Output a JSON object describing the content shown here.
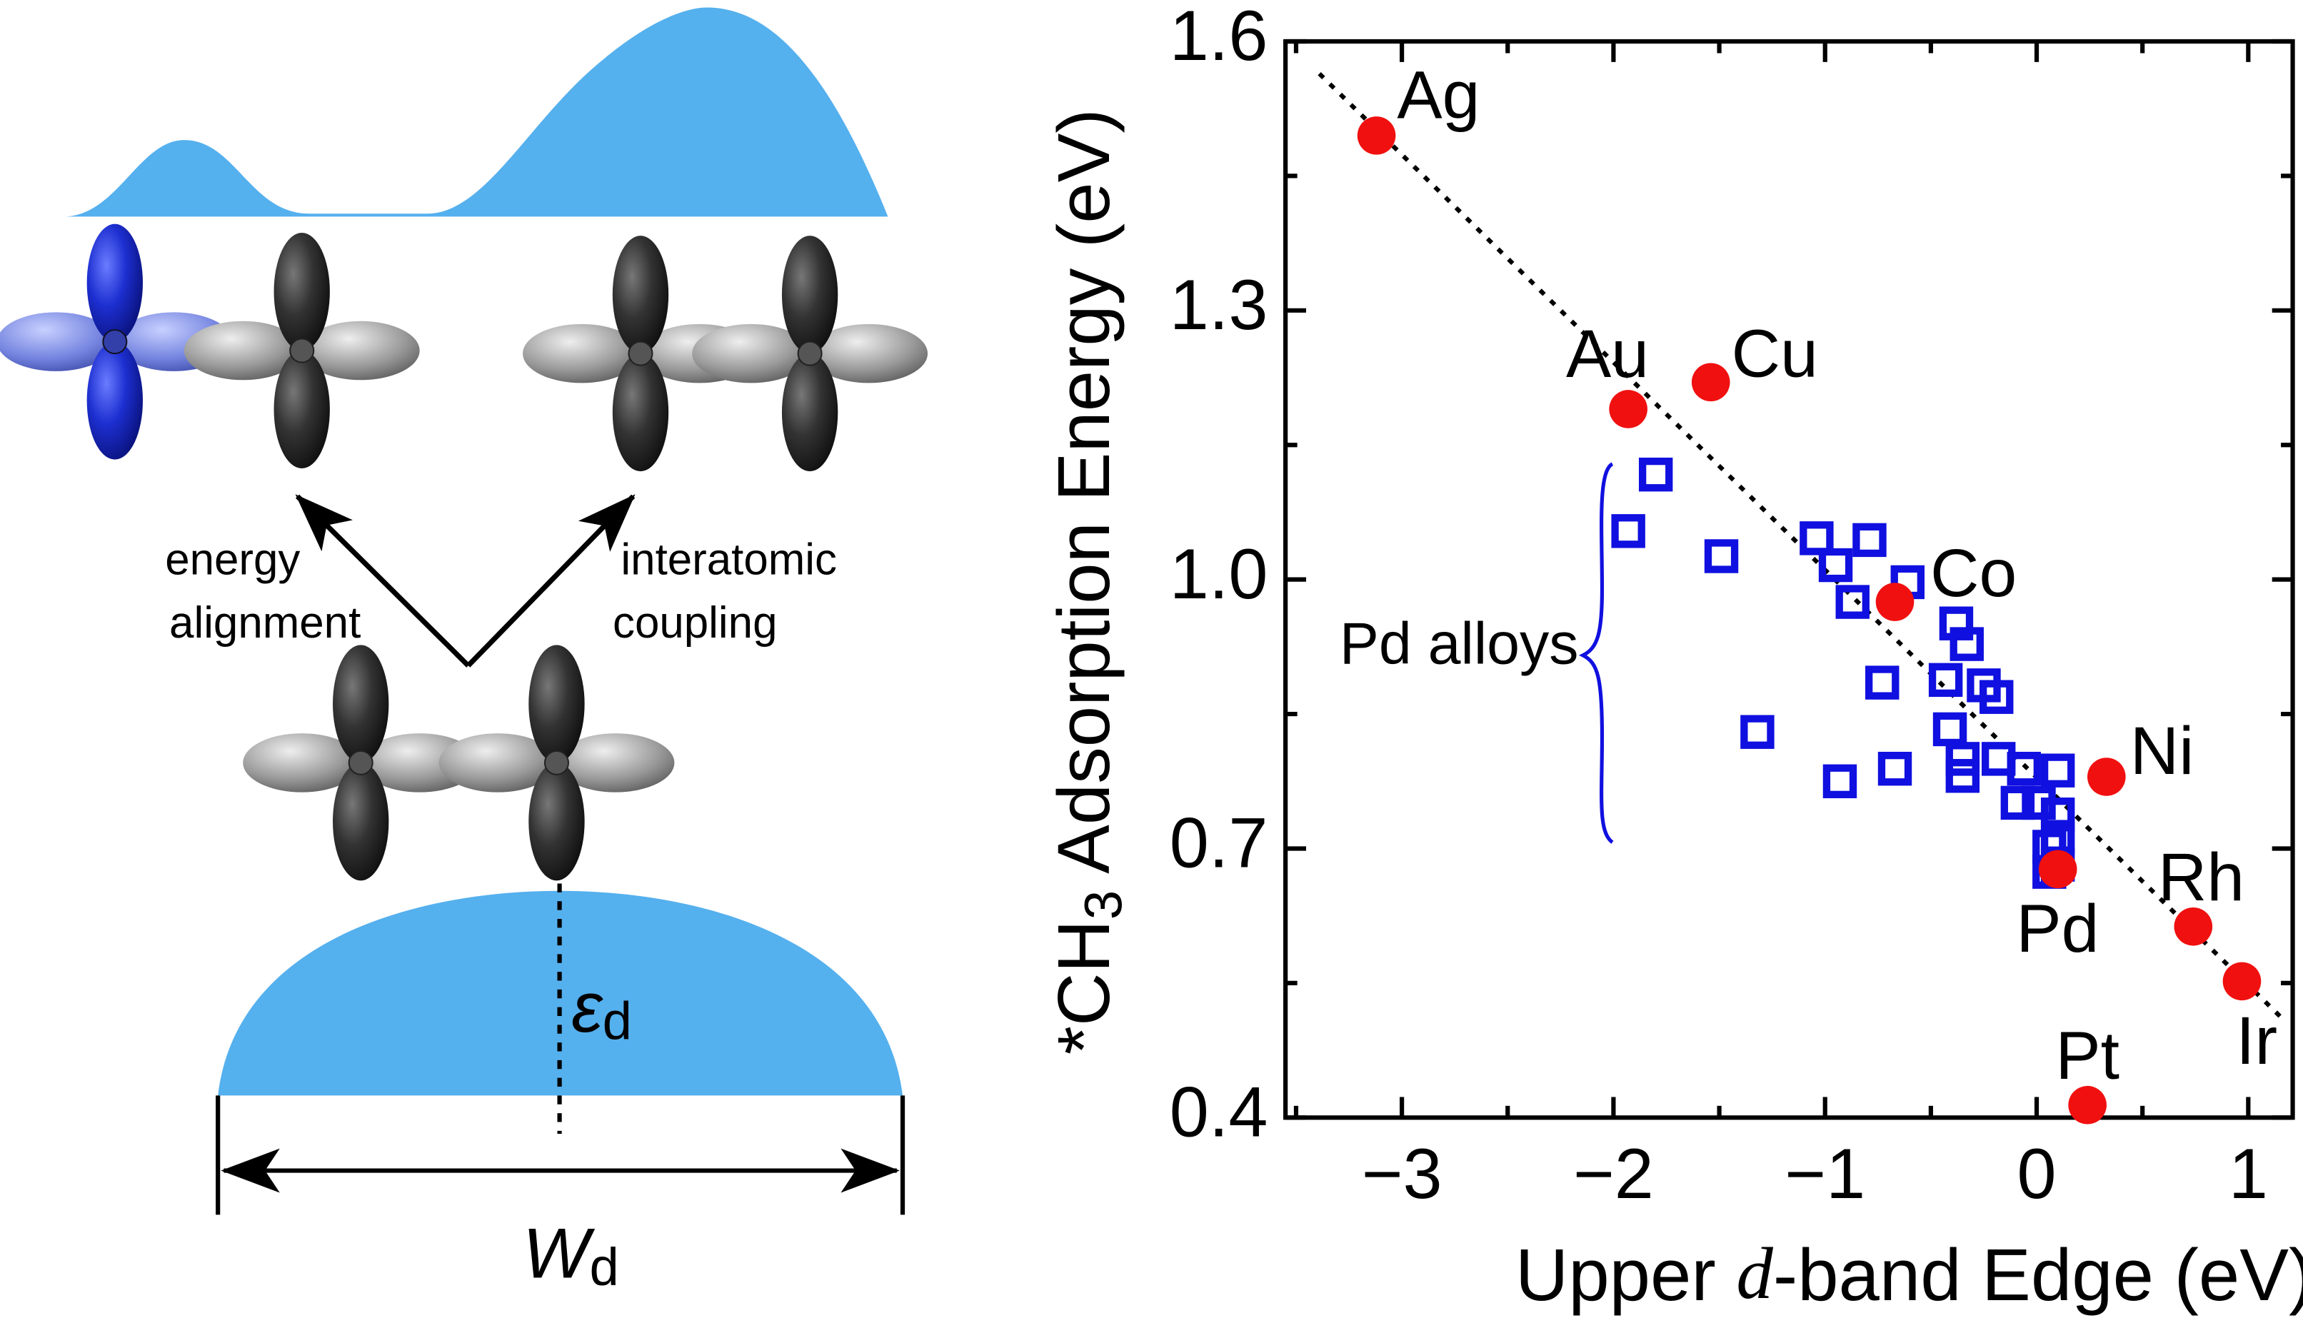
{
  "chart_data": {
    "type": "scatter",
    "xlabel": [
      "Upper ",
      "d",
      "-band Edge (eV)"
    ],
    "ylabel": [
      "*CH",
      "3",
      " Adsorption Energy (eV)"
    ],
    "xlim": [
      -3.55,
      1.21
    ],
    "ylim": [
      0.4,
      1.6
    ],
    "xticks": [
      {
        "value": -3,
        "label": "−3"
      },
      {
        "value": -2,
        "label": "−2"
      },
      {
        "value": -1,
        "label": "−1"
      },
      0,
      1
    ],
    "xminor": [
      -3.5,
      -2.5,
      -1.5,
      -0.5,
      0.5
    ],
    "yticks": [
      0.4,
      0.7,
      {
        "value": 1,
        "label": "1.0"
      },
      1.3,
      1.6
    ],
    "yminor": [
      0.55,
      0.85,
      1.15,
      1.45
    ],
    "series": [
      {
        "name": "Pd alloys",
        "color": "#1010e0",
        "marker": "square",
        "x": [
          -1.8,
          -1.93,
          -1.49,
          -1.04,
          -0.79,
          -0.95,
          -0.87,
          -0.61,
          -0.38,
          -0.33,
          -0.73,
          -0.43,
          -0.25,
          -0.19,
          -1.32,
          -0.93,
          -0.67,
          -0.41,
          -0.35,
          -0.35,
          -0.18,
          -0.06,
          0.1,
          -0.09,
          0.01,
          0.1,
          0.1,
          0.06,
          0.1,
          0.06
        ],
        "y": [
          1.117,
          1.054,
          1.026,
          1.046,
          1.044,
          1.016,
          0.975,
          0.997,
          0.951,
          0.928,
          0.885,
          0.888,
          0.882,
          0.869,
          0.83,
          0.775,
          0.789,
          0.833,
          0.8,
          0.781,
          0.8,
          0.789,
          0.787,
          0.751,
          0.751,
          0.738,
          0.713,
          0.702,
          0.682,
          0.674
        ]
      },
      {
        "color": "#f01010",
        "marker": "circle",
        "labels": [
          "Ag",
          "Au",
          "Cu",
          "Co",
          "Ni",
          "Pd",
          "Rh",
          "Ir",
          "Pt"
        ],
        "x": [
          -3.12,
          -1.93,
          -1.54,
          -0.67,
          0.33,
          0.1,
          0.74,
          0.97,
          0.24
        ],
        "y": [
          1.495,
          1.19,
          1.22,
          0.975,
          0.78,
          0.677,
          0.613,
          0.552,
          0.414
        ]
      }
    ],
    "trendline": {
      "x": [
        -3.39,
        1.15
      ],
      "y": [
        1.564,
        0.513
      ]
    }
  },
  "diagram": {
    "left_arrow_label": [
      "energy",
      "alignment"
    ],
    "right_arrow_label": [
      "interatomic",
      "coupling"
    ],
    "center_label": {
      "symbol": "ε",
      "subscript": "d"
    },
    "width_label": {
      "symbol": "W",
      "subscript": "d"
    }
  }
}
